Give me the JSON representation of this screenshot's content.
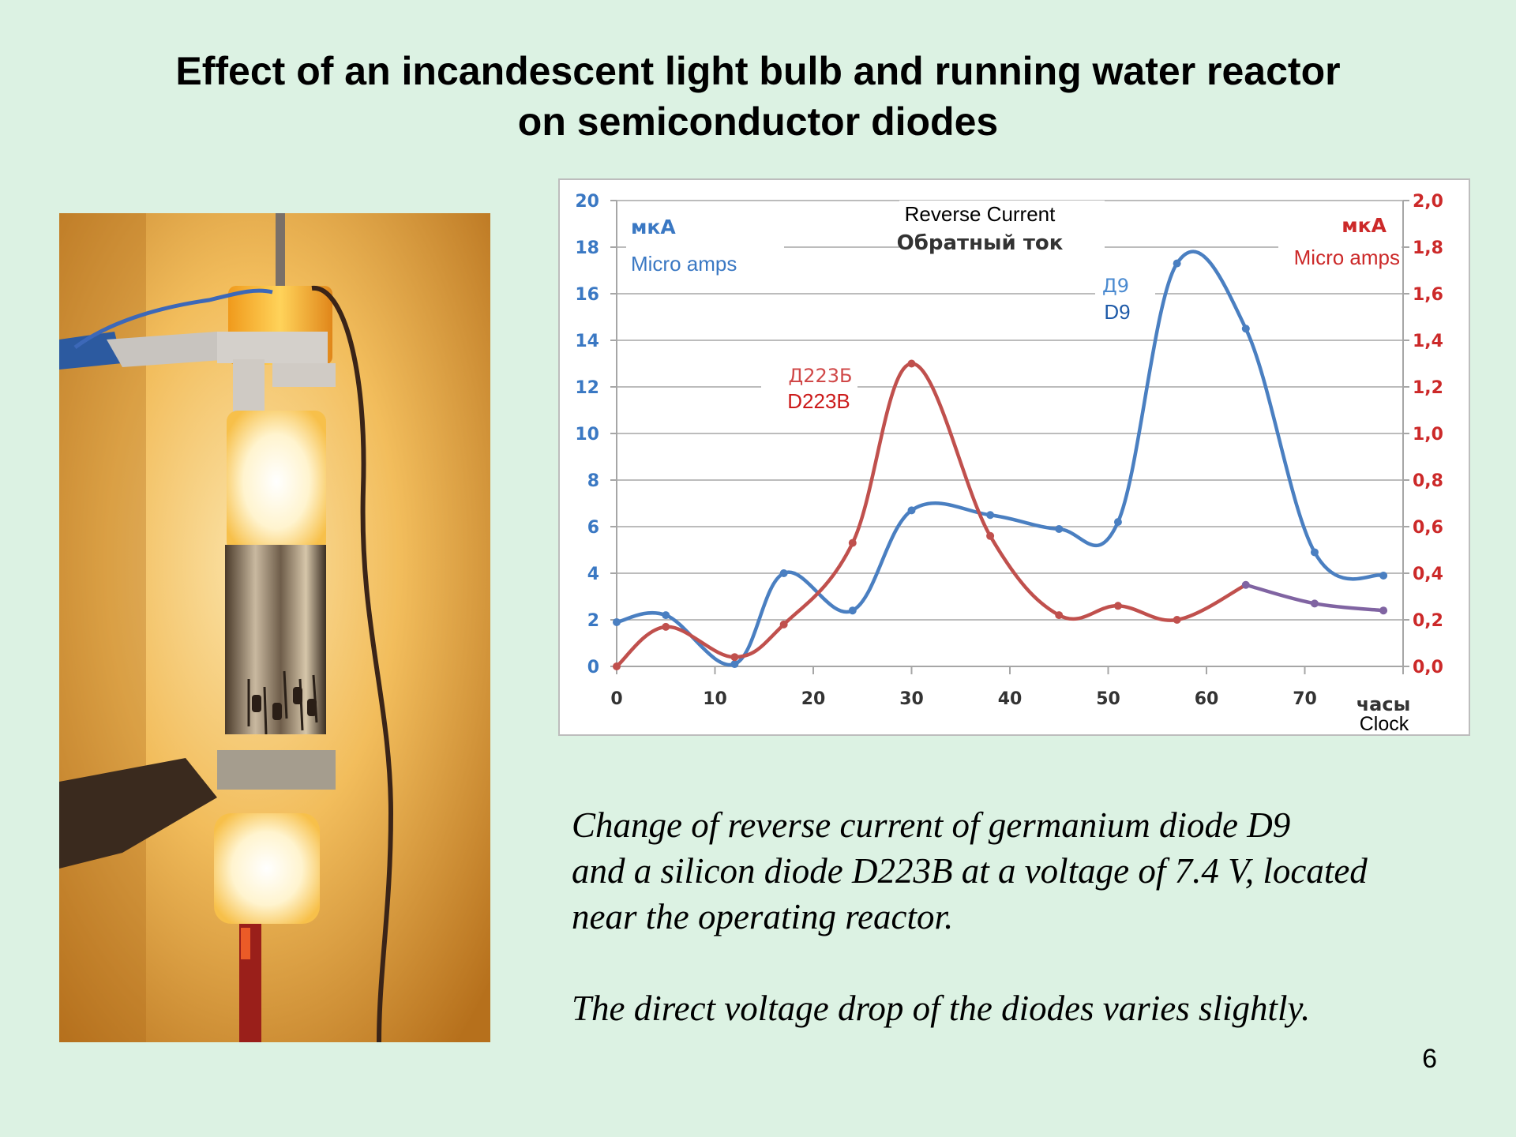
{
  "title": {
    "line1": "Effect of an incandescent light bulb and running water reactor",
    "line2": "on semiconductor diodes"
  },
  "photo": {
    "description_icon": "lamp-reactor-photo"
  },
  "chart_data": {
    "type": "line",
    "title": "Reverse Current",
    "subtitle": "Обратный ток",
    "x": {
      "ticks": [
        0,
        10,
        20,
        30,
        40,
        50,
        60,
        70
      ],
      "label_ru": "часы",
      "label_en": "Clock",
      "range": [
        0,
        80
      ]
    },
    "y_left": {
      "ticks": [
        "0",
        "2",
        "4",
        "6",
        "8",
        "10",
        "12",
        "14",
        "16",
        "18",
        "20"
      ],
      "range": [
        0,
        20
      ],
      "unit_ru": "мкА",
      "unit_en": "Micro amps",
      "color": "#3a78c3"
    },
    "y_right": {
      "ticks": [
        "0,0",
        "0,2",
        "0,4",
        "0,6",
        "0,8",
        "1,0",
        "1,2",
        "1,4",
        "1,6",
        "1,8",
        "2,0"
      ],
      "range": [
        0,
        2
      ],
      "unit_ru": "мкА",
      "unit_en": "Micro amps",
      "color": "#cc2929"
    },
    "grid": true,
    "series": [
      {
        "name_ru": "Д9",
        "name": "D9",
        "axis": "left",
        "color": "#4a7fc1",
        "points": [
          [
            0,
            1.9
          ],
          [
            5,
            2.2
          ],
          [
            12,
            0.1
          ],
          [
            17,
            4.0
          ],
          [
            24,
            2.4
          ],
          [
            30,
            6.7
          ],
          [
            38,
            6.5
          ],
          [
            45,
            5.9
          ],
          [
            51,
            6.2
          ],
          [
            57,
            17.3
          ],
          [
            64,
            14.5
          ],
          [
            71,
            4.9
          ],
          [
            78,
            3.9
          ]
        ]
      },
      {
        "name_ru": "Д223Б",
        "name": "D223B",
        "axis": "right",
        "color": "#c0504d",
        "color_tail": "#8064a2",
        "tail_from_index": 9,
        "points": [
          [
            0,
            0.0
          ],
          [
            5,
            0.17
          ],
          [
            12,
            0.04
          ],
          [
            17,
            0.18
          ],
          [
            24,
            0.53
          ],
          [
            30,
            1.3
          ],
          [
            38,
            0.56
          ],
          [
            45,
            0.22
          ],
          [
            51,
            0.26
          ],
          [
            57,
            0.2
          ],
          [
            64,
            0.35
          ],
          [
            71,
            0.27
          ],
          [
            78,
            0.24
          ]
        ]
      }
    ]
  },
  "caption": {
    "line1": "Change of reverse current of germanium diode D9",
    "line2": "and a silicon diode D223B at a voltage of 7.4 V, located",
    "line3": "near the operating reactor.",
    "line4": "The direct voltage drop of the diodes varies slightly."
  },
  "page_number": "6"
}
